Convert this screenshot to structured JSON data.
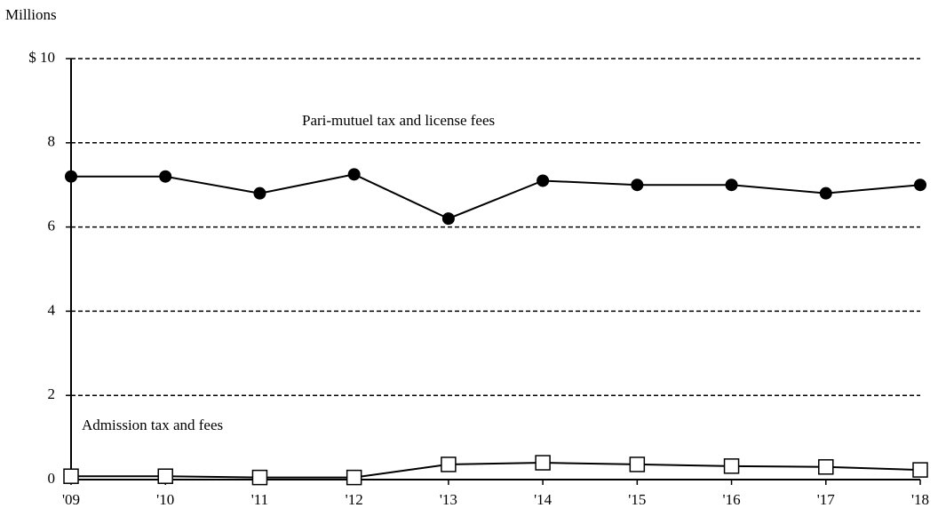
{
  "chart_data": {
    "type": "line",
    "y_axis_label": "Millions",
    "categories": [
      "'09",
      "'10",
      "'11",
      "'12",
      "'13",
      "'14",
      "'15",
      "'16",
      "'17",
      "'18"
    ],
    "series": [
      {
        "name": "Pari-mutuel tax and license fees",
        "color": "#000000",
        "marker": "circle",
        "values": [
          7.2,
          7.2,
          6.8,
          7.25,
          6.2,
          7.1,
          7.0,
          7.0,
          6.8,
          7.0
        ]
      },
      {
        "name": "Admission tax and fees",
        "color": "#000000",
        "marker": "square",
        "values": [
          0.08,
          0.08,
          0.05,
          0.05,
          0.36,
          0.4,
          0.36,
          0.32,
          0.3,
          0.23
        ]
      }
    ],
    "ylim": [
      0,
      10
    ],
    "yticks": [
      0,
      2,
      4,
      6,
      8,
      {
        "value": 10,
        "label": "$ 10"
      }
    ],
    "grid": true
  }
}
